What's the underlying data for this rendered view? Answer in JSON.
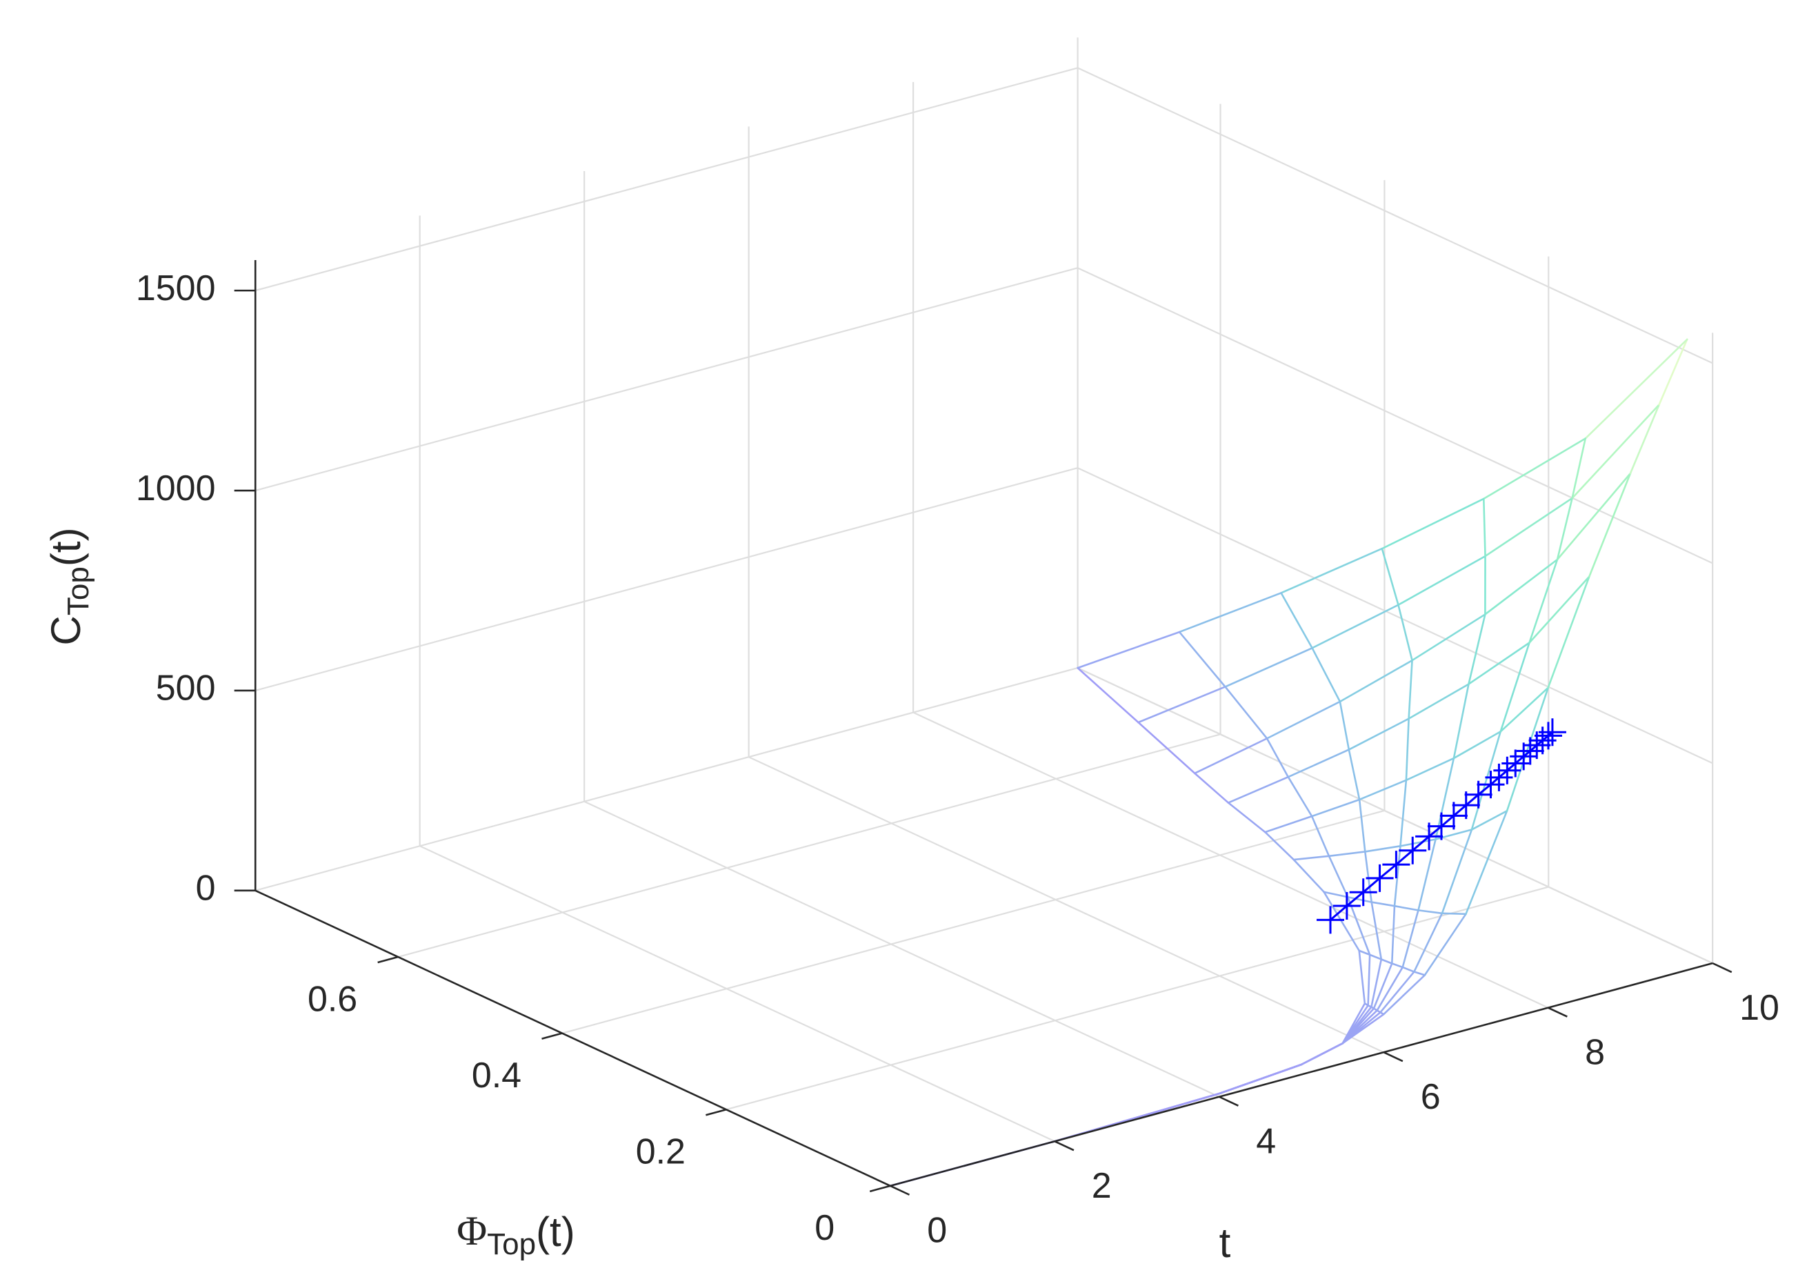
{
  "chart_data": {
    "type": "surface",
    "xlabel": "t",
    "ylabel": [
      "Φ",
      "Top",
      "(t)"
    ],
    "zlabel": [
      "C",
      "Top",
      "(t)"
    ],
    "xlim": [
      0,
      10
    ],
    "ylim": [
      0,
      0.774
    ],
    "zlim": [
      0,
      1576
    ],
    "xticks": [
      0,
      2,
      4,
      6,
      8,
      10
    ],
    "yticks": [
      0,
      0.2,
      0.4,
      0.6
    ],
    "zticks": [
      0,
      500,
      1000,
      1500
    ],
    "grid": true,
    "colormap": [
      "#a09cf7",
      "#86c8e6",
      "#80e6d2",
      "#a8f5c0",
      "#f6ffcc"
    ],
    "x": [
      0,
      2,
      4,
      5,
      5.5,
      6,
      6.5,
      7,
      7.5,
      8,
      8.5,
      9,
      9.5,
      10
    ],
    "y": [
      [
        0,
        0,
        0,
        0,
        0,
        0,
        0
      ],
      [
        0,
        0,
        0,
        0,
        0,
        0,
        0
      ],
      [
        0,
        0,
        0,
        0,
        0,
        0,
        0
      ],
      [
        0,
        0,
        0,
        0,
        0,
        0,
        0
      ],
      [
        0,
        0,
        0,
        0,
        0,
        0,
        0
      ],
      [
        0,
        0.004,
        0.008,
        0.012,
        0.015,
        0.019,
        0.023
      ],
      [
        0,
        0.013,
        0.027,
        0.04,
        0.053,
        0.067,
        0.08
      ],
      [
        0,
        0.029,
        0.058,
        0.087,
        0.115,
        0.144,
        0.173
      ],
      [
        0,
        0.043,
        0.087,
        0.13,
        0.173,
        0.217,
        0.26
      ],
      [
        0,
        0.058,
        0.115,
        0.173,
        0.23,
        0.288,
        0.345
      ],
      [
        0,
        0.073,
        0.147,
        0.22,
        0.293,
        0.367,
        0.44
      ],
      [
        0,
        0.089,
        0.177,
        0.266,
        0.354,
        0.443,
        0.531
      ],
      [
        0.015,
        0.121,
        0.227,
        0.333,
        0.438,
        0.544,
        0.65
      ],
      [
        0.031,
        0.155,
        0.279,
        0.403,
        0.526,
        0.65,
        0.774
      ]
    ],
    "z": [
      [
        0,
        0,
        0,
        0,
        0,
        0,
        0
      ],
      [
        0,
        0,
        0,
        0,
        0,
        0,
        0
      ],
      [
        8,
        8,
        8,
        8,
        8,
        8,
        8
      ],
      [
        25,
        25,
        25,
        25,
        25,
        25,
        25
      ],
      [
        50,
        50,
        50,
        50,
        50,
        50,
        50
      ],
      [
        95,
        96,
        97,
        98,
        99,
        99,
        100
      ],
      [
        165,
        161,
        159,
        156,
        154,
        152,
        150
      ],
      [
        290,
        264,
        244,
        227,
        210,
        195,
        180
      ],
      [
        520,
        432,
        366,
        308,
        253,
        200,
        150
      ],
      [
        800,
        635,
        514,
        404,
        301,
        204,
        110
      ],
      [
        1050,
        815,
        641,
        485,
        338,
        199,
        65
      ],
      [
        1280,
        980,
        759,
        559,
        372,
        195,
        24
      ],
      [
        1410,
        1075,
        829,
        606,
        398,
        200,
        10
      ],
      [
        1530,
        1164,
        895,
        652,
        424,
        208,
        0
      ]
    ],
    "series": [
      {
        "color": "#0000ff",
        "marker": "+",
        "x": [
          6.35,
          6.55,
          6.75,
          6.95,
          7.15,
          7.35,
          7.55,
          7.7,
          7.85,
          8.0,
          8.15,
          8.3,
          8.4,
          8.5,
          8.6,
          8.7,
          8.78,
          8.86,
          8.93,
          9.0,
          9.05
        ],
        "y": [
          0.1,
          0.1,
          0.1,
          0.1,
          0.1,
          0.1,
          0.1,
          0.1,
          0.1,
          0.1,
          0.1,
          0.1,
          0.1,
          0.1,
          0.1,
          0.1,
          0.1,
          0.1,
          0.1,
          0.1,
          0.1
        ],
        "z": [
          216,
          240,
          263,
          287,
          310,
          334,
          358,
          375,
          393,
          411,
          429,
          446,
          458,
          470,
          482,
          494,
          503,
          513,
          521,
          529,
          535
        ]
      }
    ]
  }
}
